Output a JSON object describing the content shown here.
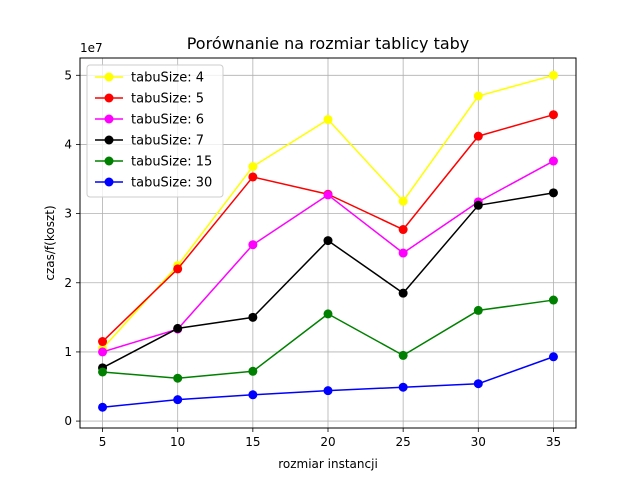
{
  "chart_data": {
    "type": "line",
    "title": "Porównanie na rozmiar tablicy taby",
    "xlabel": "rozmiar instancji",
    "ylabel": "czas/f(koszt)",
    "y_multiplier_label": "1e7",
    "x": [
      5,
      10,
      15,
      20,
      25,
      30,
      35
    ],
    "xticks": [
      "5",
      "10",
      "15",
      "20",
      "25",
      "30",
      "35"
    ],
    "yticks": [
      "0",
      "1",
      "2",
      "3",
      "4",
      "5"
    ],
    "xlim": [
      3.5,
      36.5
    ],
    "ylim": [
      -0.1,
      5.25
    ],
    "grid": true,
    "legend_position": "top-left",
    "series": [
      {
        "name": "tabuSize: 4",
        "color": "#ffff00",
        "values": [
          1.05,
          2.25,
          3.68,
          4.36,
          3.18,
          4.7,
          5.0
        ]
      },
      {
        "name": "tabuSize: 5",
        "color": "#ff0000",
        "values": [
          1.15,
          2.2,
          3.53,
          3.28,
          2.77,
          4.12,
          4.43
        ]
      },
      {
        "name": "tabuSize: 6",
        "color": "#ff00ff",
        "values": [
          1.0,
          1.33,
          2.55,
          3.27,
          2.43,
          3.17,
          3.76
        ]
      },
      {
        "name": "tabuSize: 7",
        "color": "#000000",
        "values": [
          0.77,
          1.34,
          1.5,
          2.61,
          1.85,
          3.12,
          3.3
        ]
      },
      {
        "name": "tabuSize: 15",
        "color": "#008000",
        "values": [
          0.71,
          0.62,
          0.72,
          1.55,
          0.95,
          1.6,
          1.75
        ]
      },
      {
        "name": "tabuSize: 30",
        "color": "#0000ff",
        "values": [
          0.2,
          0.31,
          0.38,
          0.44,
          0.49,
          0.54,
          0.93
        ]
      }
    ]
  }
}
